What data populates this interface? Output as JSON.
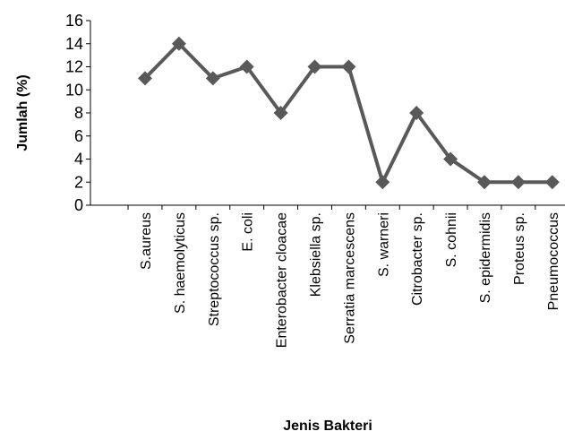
{
  "chart_data": {
    "type": "line",
    "title": "",
    "xlabel": "Jenis Bakteri",
    "ylabel": "Jumlah (%)",
    "ylim": [
      0,
      16
    ],
    "yticks": [
      0,
      2,
      4,
      6,
      8,
      10,
      12,
      14,
      16
    ],
    "grid": false,
    "legend": "none",
    "categories": [
      "S.aureus",
      "S. haemolyticus",
      "Streptococcus sp.",
      "E. coli",
      "Enterobacter cloacae",
      "Klebsiella sp.",
      "Serratia marcescens",
      "S. warneri",
      "Citrobacter sp.",
      "S. cohnii",
      "S. epidermidis",
      "Proteus sp.",
      "Pneumococcus"
    ],
    "series": [
      {
        "values": [
          11,
          14,
          11,
          12,
          8,
          12,
          12,
          2,
          8,
          4,
          2,
          2,
          2
        ],
        "color": "#595959",
        "marker": "diamond"
      }
    ]
  }
}
